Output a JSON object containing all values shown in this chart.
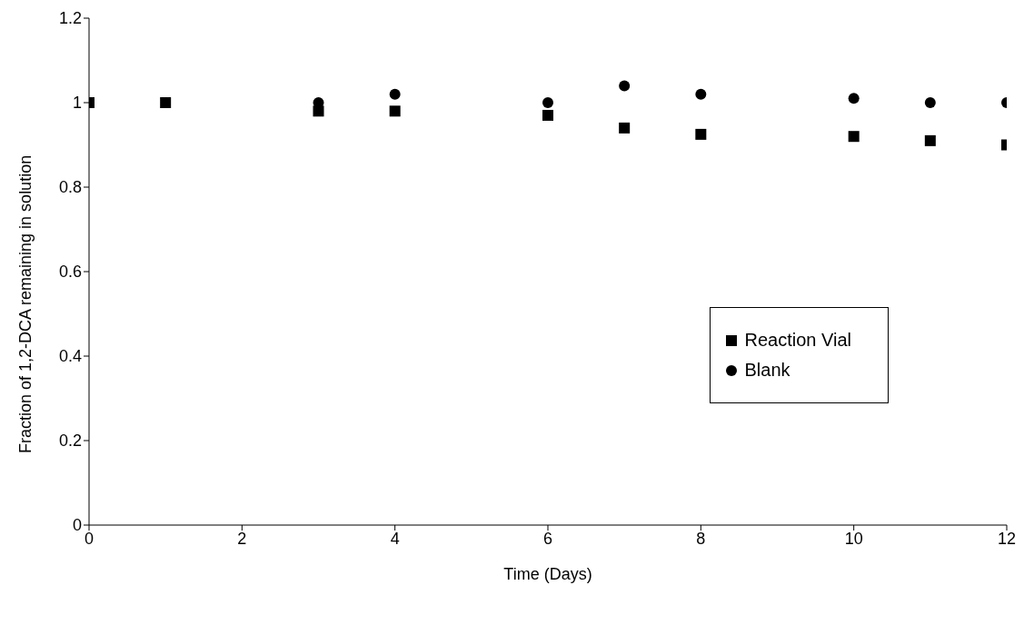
{
  "chart_data": {
    "type": "scatter",
    "xlabel": "Time (Days)",
    "ylabel": "Fraction of 1,2-DCA remaining in solution",
    "x": [
      0,
      1,
      3,
      4,
      6,
      7,
      8,
      10,
      11,
      12
    ],
    "series": [
      {
        "name": "Reaction Vial",
        "color": "#000000",
        "marker": "square",
        "values": [
          1.0,
          1.0,
          0.98,
          0.98,
          0.97,
          0.94,
          0.925,
          0.92,
          0.91,
          0.9
        ]
      },
      {
        "name": "Blank",
        "color": "#000000",
        "marker": "circle",
        "values": [
          null,
          null,
          1.0,
          1.02,
          1.0,
          1.04,
          1.02,
          1.01,
          1.0,
          1.0
        ]
      }
    ],
    "xlim": [
      0,
      12
    ],
    "xticks": [
      0,
      2,
      4,
      6,
      8,
      10,
      12
    ],
    "ylim": [
      0,
      1.2
    ],
    "yticks": [
      0,
      0.2,
      0.4,
      0.6,
      0.8,
      1,
      1.2
    ],
    "grid": false,
    "legend": "right"
  }
}
